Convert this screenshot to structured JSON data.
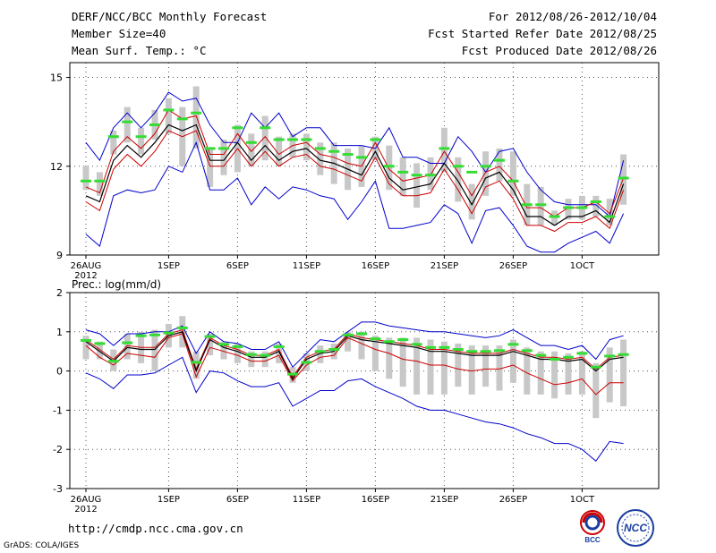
{
  "header": {
    "title": "DERF/NCC/BCC Monthly Forecast",
    "member_size": "Member Size=40",
    "variable": "Mean Surf. Temp.: °C",
    "period": "For 2012/08/26-2012/10/04",
    "start_date": "Fcst Started Refer Date 2012/08/25",
    "produced_date": "Fcst Produced Date 2012/08/26"
  },
  "footer": {
    "url": "http://cmdp.ncc.cma.gov.cn",
    "grads": "GrADS: COLA/IGES",
    "logo_left": "BCC",
    "logo_right": "NCC"
  },
  "colors": {
    "extreme": "#0000cc",
    "quartile": "#cc0000",
    "median": "#000000",
    "box": "#c8c8c8",
    "mean": "#33dd33"
  },
  "chart_data": [
    {
      "type": "line",
      "title": "Mean Surf. Temp.: °C",
      "ylim": [
        9,
        15.5
      ],
      "yticks": [
        9,
        12,
        15
      ],
      "x_tick_labels": [
        "26AUG",
        "1SEP",
        "6SEP",
        "11SEP",
        "16SEP",
        "21SEP",
        "26SEP",
        "1OCT"
      ],
      "x_tick_days": [
        0,
        6,
        11,
        16,
        21,
        26,
        31,
        36
      ],
      "x_sub_label": "2012",
      "days": 40,
      "series": [
        {
          "name": "max",
          "values": [
            12.8,
            12.2,
            13.3,
            13.8,
            13.3,
            13.8,
            14.5,
            14.2,
            14.3,
            13.4,
            12.8,
            12.8,
            13.8,
            13.3,
            13.8,
            13.0,
            13.3,
            13.3,
            12.7,
            12.7,
            12.7,
            12.6,
            13.3,
            12.3,
            12.3,
            12.1,
            12.1,
            13.0,
            12.5,
            11.8,
            12.5,
            12.6,
            11.8,
            11.2,
            10.8,
            10.7,
            10.7,
            10.7,
            10.3,
            12.2
          ]
        },
        {
          "name": "q75",
          "values": [
            11.3,
            11.1,
            12.5,
            13.0,
            12.6,
            13.1,
            13.9,
            13.6,
            13.7,
            12.4,
            12.4,
            13.1,
            12.5,
            13.0,
            12.4,
            12.7,
            12.8,
            12.4,
            12.3,
            12.1,
            12.0,
            12.8,
            11.9,
            11.5,
            11.6,
            11.7,
            12.5,
            11.8,
            11.0,
            11.8,
            12.0,
            11.5,
            10.6,
            10.6,
            10.3,
            10.6,
            10.6,
            10.8,
            10.4,
            11.6
          ]
        },
        {
          "name": "median",
          "values": [
            11.0,
            10.8,
            12.2,
            12.7,
            12.3,
            12.8,
            13.4,
            13.2,
            13.4,
            12.2,
            12.2,
            12.8,
            12.2,
            12.7,
            12.2,
            12.5,
            12.6,
            12.2,
            12.1,
            11.9,
            11.7,
            12.5,
            11.6,
            11.2,
            11.3,
            11.4,
            12.1,
            11.5,
            10.7,
            11.6,
            11.8,
            11.2,
            10.3,
            10.3,
            10.0,
            10.3,
            10.3,
            10.5,
            10.1,
            11.4
          ]
        },
        {
          "name": "q25",
          "values": [
            10.8,
            10.5,
            11.9,
            12.4,
            12.0,
            12.5,
            13.2,
            13.0,
            13.2,
            12.0,
            12.0,
            12.6,
            12.0,
            12.5,
            12.0,
            12.3,
            12.4,
            12.0,
            11.9,
            11.7,
            11.5,
            12.3,
            11.4,
            11.0,
            11.0,
            11.1,
            11.9,
            11.2,
            10.4,
            11.3,
            11.5,
            10.9,
            10.0,
            10.0,
            9.8,
            10.1,
            10.1,
            10.3,
            9.9,
            11.2
          ]
        },
        {
          "name": "min",
          "values": [
            9.7,
            9.3,
            11.0,
            11.2,
            11.1,
            11.2,
            12.0,
            11.8,
            12.8,
            11.2,
            11.2,
            11.6,
            10.7,
            11.3,
            10.9,
            11.3,
            11.2,
            11.0,
            10.9,
            10.2,
            10.8,
            11.5,
            9.9,
            9.9,
            10.0,
            10.1,
            10.7,
            10.4,
            9.4,
            10.5,
            10.6,
            10.0,
            9.3,
            9.1,
            9.1,
            9.4,
            9.6,
            9.8,
            9.4,
            10.4
          ]
        },
        {
          "name": "box_low",
          "values": [
            11.2,
            11.0,
            12.4,
            12.8,
            12.4,
            12.9,
            13.1,
            12.0,
            12.6,
            11.3,
            11.7,
            11.8,
            12.0,
            12.2,
            12.0,
            12.3,
            12.2,
            11.7,
            11.4,
            11.2,
            11.3,
            12.2,
            11.2,
            11.0,
            10.6,
            11.2,
            11.8,
            10.8,
            10.2,
            11.0,
            11.5,
            11.0,
            10.0,
            10.0,
            10.0,
            10.2,
            10.2,
            10.3,
            10.0,
            10.7
          ]
        },
        {
          "name": "box_high",
          "values": [
            12.0,
            11.8,
            13.2,
            14.0,
            13.3,
            13.9,
            14.3,
            14.0,
            14.7,
            12.6,
            12.9,
            13.4,
            13.1,
            13.7,
            13.0,
            13.1,
            13.1,
            12.8,
            12.8,
            12.6,
            12.7,
            13.0,
            12.7,
            12.3,
            12.1,
            12.3,
            13.3,
            12.3,
            11.4,
            12.5,
            12.6,
            12.5,
            11.4,
            11.3,
            10.5,
            10.9,
            11.0,
            11.0,
            10.9,
            12.4
          ]
        },
        {
          "name": "mean",
          "values": [
            11.5,
            11.5,
            13.0,
            13.5,
            13.0,
            13.4,
            13.9,
            13.6,
            13.8,
            12.6,
            12.6,
            13.3,
            12.8,
            13.3,
            12.9,
            12.9,
            12.9,
            12.6,
            12.5,
            12.4,
            12.3,
            12.9,
            12.0,
            11.8,
            11.7,
            11.7,
            12.6,
            12.0,
            11.8,
            12.0,
            12.2,
            11.5,
            10.7,
            10.7,
            10.3,
            10.6,
            10.6,
            10.8,
            10.3,
            11.6
          ]
        }
      ]
    },
    {
      "type": "line",
      "title": "Prec.: log(mm/d)",
      "ylim": [
        -3,
        2
      ],
      "yticks": [
        -3,
        -2,
        -1,
        0,
        1,
        2
      ],
      "x_tick_labels": [
        "26AUG",
        "1SEP",
        "6SEP",
        "11SEP",
        "16SEP",
        "21SEP",
        "26SEP",
        "1OCT"
      ],
      "x_tick_days": [
        0,
        6,
        11,
        16,
        21,
        26,
        31,
        36
      ],
      "x_sub_label": "2012",
      "days": 40,
      "series": [
        {
          "name": "max",
          "values": [
            1.05,
            0.95,
            0.65,
            0.95,
            0.95,
            1.0,
            1.0,
            1.15,
            0.45,
            1.0,
            0.75,
            0.7,
            0.55,
            0.55,
            0.75,
            0.1,
            0.45,
            0.8,
            0.75,
            1.0,
            1.25,
            1.25,
            1.15,
            1.1,
            1.05,
            1.0,
            1.0,
            0.95,
            0.9,
            0.85,
            0.9,
            1.05,
            0.85,
            0.65,
            0.65,
            0.55,
            0.65,
            0.3,
            0.8,
            0.9
          ]
        },
        {
          "name": "q75",
          "values": [
            0.8,
            0.55,
            0.3,
            0.65,
            0.6,
            0.6,
            0.95,
            1.05,
            0.05,
            0.85,
            0.65,
            0.55,
            0.4,
            0.4,
            0.55,
            -0.15,
            0.35,
            0.5,
            0.55,
            0.95,
            0.85,
            0.8,
            0.75,
            0.7,
            0.65,
            0.55,
            0.55,
            0.5,
            0.45,
            0.45,
            0.45,
            0.55,
            0.45,
            0.35,
            0.35,
            0.3,
            0.35,
            0.05,
            0.35,
            0.4
          ]
        },
        {
          "name": "median",
          "values": [
            0.75,
            0.5,
            0.25,
            0.6,
            0.55,
            0.55,
            0.9,
            1.0,
            0.0,
            0.8,
            0.6,
            0.5,
            0.35,
            0.35,
            0.5,
            -0.2,
            0.3,
            0.45,
            0.5,
            0.9,
            0.8,
            0.75,
            0.7,
            0.65,
            0.6,
            0.5,
            0.5,
            0.45,
            0.4,
            0.4,
            0.4,
            0.5,
            0.4,
            0.3,
            0.3,
            0.25,
            0.3,
            0.0,
            0.3,
            0.35
          ]
        },
        {
          "name": "q25",
          "values": [
            0.65,
            0.35,
            0.15,
            0.45,
            0.4,
            0.35,
            0.85,
            0.95,
            -0.15,
            0.6,
            0.5,
            0.4,
            0.25,
            0.25,
            0.4,
            -0.25,
            0.15,
            0.35,
            0.4,
            0.85,
            0.7,
            0.55,
            0.45,
            0.3,
            0.25,
            0.15,
            0.15,
            0.05,
            0.0,
            0.05,
            0.05,
            0.15,
            -0.05,
            -0.2,
            -0.35,
            -0.3,
            -0.2,
            -0.6,
            -0.3,
            -0.3
          ]
        },
        {
          "name": "min",
          "values": [
            -0.05,
            -0.2,
            -0.45,
            -0.1,
            -0.1,
            -0.05,
            0.15,
            0.35,
            -0.55,
            0.0,
            -0.05,
            -0.25,
            -0.4,
            -0.4,
            -0.3,
            -0.9,
            -0.7,
            -0.5,
            -0.5,
            -0.25,
            -0.2,
            -0.4,
            -0.55,
            -0.7,
            -0.9,
            -1.0,
            -1.0,
            -1.1,
            -1.2,
            -1.3,
            -1.35,
            -1.45,
            -1.6,
            -1.7,
            -1.85,
            -1.85,
            -2.0,
            -2.3,
            -1.8,
            -1.85
          ]
        },
        {
          "name": "box_low",
          "values": [
            0.3,
            0.3,
            0.0,
            0.3,
            0.2,
            0.0,
            0.6,
            0.6,
            -0.2,
            0.4,
            0.3,
            0.2,
            0.1,
            0.1,
            0.2,
            -0.3,
            0.0,
            0.2,
            0.3,
            0.5,
            0.3,
            0.0,
            -0.2,
            -0.4,
            -0.6,
            -0.6,
            -0.6,
            -0.4,
            -0.6,
            -0.4,
            -0.5,
            -0.3,
            -0.6,
            -0.6,
            -0.7,
            -0.6,
            -0.6,
            -1.2,
            -0.8,
            -0.9
          ]
        },
        {
          "name": "box_high",
          "values": [
            0.9,
            0.75,
            0.55,
            0.95,
            1.0,
            1.05,
            1.2,
            1.4,
            0.5,
            0.95,
            0.75,
            0.7,
            0.5,
            0.5,
            0.7,
            0.1,
            0.45,
            0.65,
            0.7,
            1.0,
            1.0,
            0.9,
            0.85,
            0.85,
            0.85,
            0.8,
            0.75,
            0.7,
            0.65,
            0.65,
            0.65,
            0.8,
            0.6,
            0.5,
            0.5,
            0.45,
            0.5,
            0.2,
            0.6,
            0.8
          ]
        },
        {
          "name": "mean",
          "values": [
            0.78,
            0.7,
            0.25,
            0.72,
            0.9,
            0.92,
            0.97,
            1.1,
            0.22,
            0.88,
            0.68,
            0.62,
            0.42,
            0.4,
            0.62,
            -0.08,
            0.22,
            0.5,
            0.55,
            0.92,
            0.95,
            0.82,
            0.75,
            0.8,
            0.68,
            0.6,
            0.6,
            0.55,
            0.5,
            0.5,
            0.52,
            0.68,
            0.52,
            0.4,
            0.3,
            0.35,
            0.45,
            0.1,
            0.38,
            0.42
          ]
        }
      ]
    }
  ]
}
